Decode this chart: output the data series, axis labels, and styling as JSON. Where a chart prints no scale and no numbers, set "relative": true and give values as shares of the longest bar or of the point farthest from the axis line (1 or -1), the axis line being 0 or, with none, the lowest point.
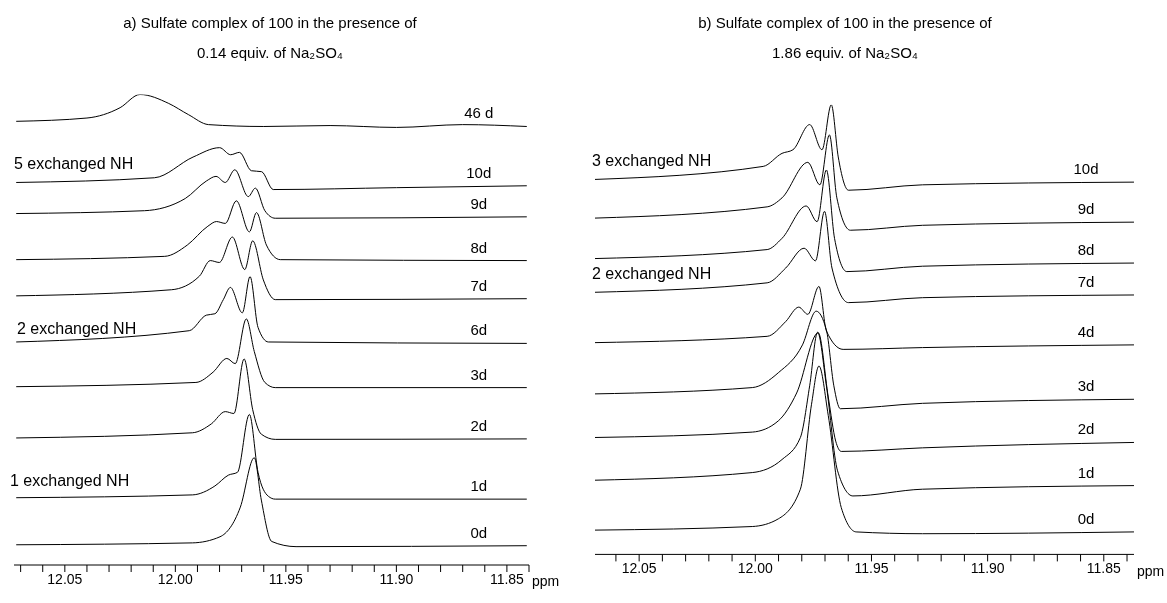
{
  "chart_data": [
    {
      "type": "line",
      "title": "a) Sulfate complex of 100 in the presence of 0.14 equiv. of Na₂SO₄",
      "xlabel": "ppm",
      "relative": true,
      "xlim": [
        12.073,
        11.84
      ],
      "xticks": [
        {
          "value": 12.07,
          "label": null
        },
        {
          "value": 12.06,
          "label": null
        },
        12.05,
        {
          "value": 12.04,
          "label": null
        },
        {
          "value": 12.03,
          "label": null
        },
        {
          "value": 12.02,
          "label": null
        },
        {
          "value": 12.01,
          "label": null
        },
        {
          "value": 12,
          "label": "12.00"
        },
        {
          "value": 11.99,
          "label": null
        },
        {
          "value": 11.98,
          "label": null
        },
        {
          "value": 11.97,
          "label": null
        },
        {
          "value": 11.96,
          "label": null
        },
        11.95,
        {
          "value": 11.94,
          "label": null
        },
        {
          "value": 11.93,
          "label": null
        },
        {
          "value": 11.92,
          "label": null
        },
        {
          "value": 11.91,
          "label": null
        },
        {
          "value": 11.9,
          "label": "11.90"
        },
        {
          "value": 11.89,
          "label": null
        },
        {
          "value": 11.88,
          "label": null
        },
        {
          "value": 11.87,
          "label": null
        },
        {
          "value": 11.86,
          "label": null
        },
        11.85,
        {
          "value": 11.84,
          "label": null
        }
      ],
      "series": [
        {
          "name": "46 d",
          "color": "#000000",
          "x": [
            12.072,
            12.04,
            12.025,
            12.016,
            12.003,
            11.994,
            11.985,
            11.96,
            11.93,
            11.9,
            11.87,
            11.841
          ],
          "values": [
            0.943,
            0.95,
            0.972,
            1.0,
            0.981,
            0.957,
            0.936,
            0.932,
            0.934,
            0.93,
            0.936,
            0.932
          ]
        },
        {
          "name": "10d",
          "color": "#000000",
          "x": [
            12.072,
            12.0095,
            11.992,
            11.98,
            11.975,
            11.971,
            11.9656,
            11.961,
            11.9557,
            11.9,
            11.841
          ],
          "values": [
            0.813,
            0.823,
            0.867,
            0.887,
            0.872,
            0.877,
            0.838,
            0.836,
            0.798,
            0.802,
            0.806
          ]
        },
        {
          "name": "9d",
          "color": "#000000",
          "x": [
            12.072,
            12.014,
            11.9955,
            11.986,
            11.9816,
            11.9774,
            11.9731,
            11.967,
            11.9638,
            11.9595,
            11.9548,
            11.841
          ],
          "values": [
            0.747,
            0.753,
            0.779,
            0.816,
            0.826,
            0.813,
            0.84,
            0.783,
            0.801,
            0.753,
            0.737,
            0.74
          ]
        },
        {
          "name": "8d",
          "color": "#000000",
          "x": [
            12.072,
            12.0048,
            11.9946,
            11.9853,
            11.9814,
            11.9774,
            11.9724,
            11.9665,
            11.9633,
            11.9588,
            11.9525,
            11.841
          ],
          "values": [
            0.649,
            0.656,
            0.68,
            0.72,
            0.73,
            0.726,
            0.774,
            0.708,
            0.749,
            0.68,
            0.649,
            0.647
          ]
        },
        {
          "name": "7d",
          "color": "#000000",
          "x": [
            12.072,
            12.0018,
            11.9891,
            11.9842,
            11.9801,
            11.9742,
            11.9686,
            11.965,
            11.9602,
            11.9548,
            11.841
          ],
          "values": [
            0.572,
            0.585,
            0.614,
            0.647,
            0.643,
            0.697,
            0.628,
            0.689,
            0.606,
            0.564,
            0.566
          ]
        },
        {
          "name": "6d",
          "color": "#000000",
          "x": [
            12.072,
            11.9937,
            11.986,
            11.9821,
            11.9783,
            11.9751,
            11.9697,
            11.9662,
            11.9626,
            11.9579,
            11.841
          ],
          "values": [
            0.474,
            0.498,
            0.531,
            0.534,
            0.564,
            0.59,
            0.536,
            0.613,
            0.505,
            0.474,
            0.471
          ]
        },
        {
          "name": "3d",
          "color": "#000000",
          "x": [
            12.072,
            11.9907,
            11.9829,
            11.9767,
            11.9729,
            11.9679,
            11.9643,
            11.9595,
            11.9548,
            11.841
          ],
          "values": [
            0.379,
            0.388,
            0.41,
            0.439,
            0.428,
            0.523,
            0.454,
            0.388,
            0.377,
            0.377
          ]
        },
        {
          "name": "2d",
          "color": "#000000",
          "x": [
            12.072,
            11.9923,
            11.9837,
            11.9774,
            11.9735,
            11.9689,
            11.965,
            11.9611,
            11.9548,
            11.841
          ],
          "values": [
            0.27,
            0.281,
            0.3,
            0.326,
            0.322,
            0.438,
            0.33,
            0.278,
            0.267,
            0.268
          ]
        },
        {
          "name": "1d",
          "color": "#000000",
          "x": [
            12.072,
            11.9923,
            11.9821,
            11.976,
            11.9719,
            11.9665,
            11.9626,
            11.9579,
            11.9548,
            11.841
          ],
          "values": [
            0.143,
            0.149,
            0.168,
            0.191,
            0.197,
            0.32,
            0.197,
            0.146,
            0.14,
            0.14
          ]
        },
        {
          "name": "0d",
          "color": "#000000",
          "x": [
            12.072,
            11.9923,
            11.9798,
            11.9706,
            11.9643,
            11.9611,
            11.9564,
            11.9454,
            11.841
          ],
          "values": [
            0.043,
            0.047,
            0.06,
            0.123,
            0.228,
            0.138,
            0.05,
            0.039,
            0.041
          ]
        }
      ],
      "annotations": [
        "5 exchanged NH",
        "2 exchanged NH",
        "1 exchanged NH"
      ]
    },
    {
      "type": "line",
      "title": "b) Sulfate complex of 100 in the presence of 1.86 equiv. of Na₂SO₄",
      "xlabel": "ppm",
      "relative": true,
      "xlim": [
        12.069,
        11.837
      ],
      "xticks": [
        {
          "value": 12.06,
          "label": null
        },
        12.05,
        {
          "value": 12.04,
          "label": null
        },
        {
          "value": 12.03,
          "label": null
        },
        {
          "value": 12.02,
          "label": null
        },
        {
          "value": 12.01,
          "label": null
        },
        {
          "value": 12,
          "label": "12.00"
        },
        {
          "value": 11.99,
          "label": null
        },
        {
          "value": 11.98,
          "label": null
        },
        {
          "value": 11.97,
          "label": null
        },
        {
          "value": 11.96,
          "label": null
        },
        11.95,
        {
          "value": 11.94,
          "label": null
        },
        {
          "value": 11.93,
          "label": null
        },
        {
          "value": 11.92,
          "label": null
        },
        {
          "value": 11.91,
          "label": null
        },
        {
          "value": 11.9,
          "label": "11.90"
        },
        {
          "value": 11.89,
          "label": null
        },
        {
          "value": 11.88,
          "label": null
        },
        {
          "value": 11.87,
          "label": null
        },
        {
          "value": 11.86,
          "label": null
        },
        11.85,
        {
          "value": 11.84,
          "label": null
        }
      ],
      "series": [
        {
          "name": "10d",
          "color": "#000000",
          "x": [
            12.069,
            11.9966,
            11.9885,
            11.9838,
            11.9766,
            11.9713,
            11.9673,
            11.9643,
            11.9599,
            11.928,
            11.837
          ],
          "values": [
            0.834,
            0.863,
            0.892,
            0.9,
            0.956,
            0.9,
            1.0,
            0.884,
            0.81,
            0.822,
            0.828
          ]
        },
        {
          "name": "9d",
          "color": "#000000",
          "x": [
            12.069,
            11.9949,
            11.9885,
            11.9774,
            11.9722,
            11.9681,
            11.9649,
            11.9591,
            11.928,
            11.837
          ],
          "values": [
            0.748,
            0.773,
            0.793,
            0.872,
            0.822,
            0.933,
            0.793,
            0.721,
            0.732,
            0.739
          ]
        },
        {
          "name": "8d",
          "color": "#000000",
          "x": [
            12.069,
            11.9949,
            11.9885,
            11.9781,
            11.9734,
            11.9694,
            11.9659,
            11.9606,
            11.928,
            11.837
          ],
          "values": [
            0.658,
            0.678,
            0.703,
            0.775,
            0.74,
            0.855,
            0.703,
            0.629,
            0.641,
            0.648
          ]
        },
        {
          "name": "7d",
          "color": "#000000",
          "x": [
            12.069,
            11.9949,
            11.9869,
            11.979,
            11.9741,
            11.9702,
            11.967,
            11.9599,
            11.928,
            11.837
          ],
          "values": [
            0.583,
            0.604,
            0.637,
            0.681,
            0.653,
            0.763,
            0.637,
            0.56,
            0.571,
            0.577
          ]
        },
        {
          "name": "4d",
          "color": "#000000",
          "x": [
            12.069,
            11.9949,
            11.9869,
            11.9813,
            11.9774,
            11.9726,
            11.9694,
            11.9622,
            11.928,
            11.837
          ],
          "values": [
            0.471,
            0.485,
            0.518,
            0.55,
            0.534,
            0.596,
            0.497,
            0.456,
            0.46,
            0.466
          ]
        },
        {
          "name": "3d",
          "color": "#000000",
          "x": [
            12.069,
            12.0013,
            11.9901,
            11.9797,
            11.9738,
            11.9694,
            11.9662,
            11.9634,
            11.928,
            11.837
          ],
          "values": [
            0.357,
            0.371,
            0.404,
            0.466,
            0.541,
            0.499,
            0.375,
            0.324,
            0.336,
            0.345
          ]
        },
        {
          "name": "2d",
          "color": "#000000",
          "x": [
            12.069,
            12.0013,
            11.9901,
            11.9822,
            11.9729,
            11.9686,
            11.9654,
            11.963,
            11.928,
            11.837
          ],
          "values": [
            0.26,
            0.272,
            0.297,
            0.359,
            0.493,
            0.35,
            0.252,
            0.229,
            0.237,
            0.249
          ]
        },
        {
          "name": "1d",
          "color": "#000000",
          "x": [
            12.069,
            12.0013,
            11.9885,
            11.9806,
            11.9766,
            11.9732,
            11.9694,
            11.9646,
            11.958,
            11.928,
            11.837
          ],
          "values": [
            0.165,
            0.182,
            0.211,
            0.26,
            0.375,
            0.494,
            0.375,
            0.186,
            0.13,
            0.145,
            0.153
          ]
        },
        {
          "name": "0d",
          "color": "#000000",
          "x": [
            12.069,
            12.0013,
            11.9901,
            11.9806,
            11.9758,
            11.9726,
            11.9686,
            11.963,
            11.9566,
            11.928,
            11.837
          ],
          "values": [
            0.054,
            0.062,
            0.079,
            0.145,
            0.334,
            0.419,
            0.309,
            0.104,
            0.05,
            0.046,
            0.05
          ]
        }
      ],
      "annotations": [
        "3 exchanged NH",
        "2 exchanged NH"
      ]
    }
  ]
}
